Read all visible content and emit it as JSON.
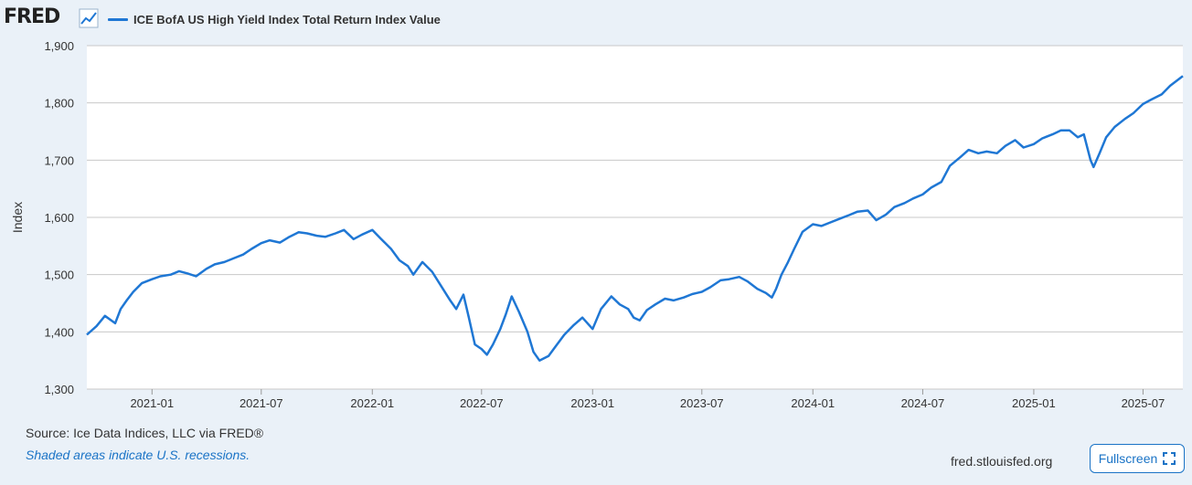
{
  "header": {
    "logo_text": "FRED",
    "logo_icon": "trend-chart-icon"
  },
  "chart_data": {
    "type": "line",
    "title": "",
    "legend": [
      {
        "name": "ICE BofA US High Yield Index Total Return Index Value",
        "color": "#1f77d4"
      }
    ],
    "ylabel": "Index",
    "xlabel": "",
    "ylim": [
      1300,
      1900
    ],
    "xlim": [
      "2020-09-15",
      "2025-09-05"
    ],
    "yticks": [
      1300,
      1400,
      1500,
      1600,
      1700,
      1800,
      1900
    ],
    "ytick_labels": [
      "1,300",
      "1,400",
      "1,500",
      "1,600",
      "1,700",
      "1,800",
      "1,900"
    ],
    "xticks": [
      "2021-01-01",
      "2021-07-01",
      "2022-01-01",
      "2022-07-01",
      "2023-01-01",
      "2023-07-01",
      "2024-01-01",
      "2024-07-01",
      "2025-01-01",
      "2025-07-01"
    ],
    "xtick_labels": [
      "2021-01",
      "2021-07",
      "2022-01",
      "2022-07",
      "2023-01",
      "2023-07",
      "2024-01",
      "2024-07",
      "2025-01",
      "2025-07"
    ],
    "grid": "horizontal",
    "series": [
      {
        "name": "ICE BofA US High Yield Index Total Return Index Value",
        "color": "#1f77d4",
        "points": [
          [
            "2020-09-15",
            1395
          ],
          [
            "2020-10-01",
            1410
          ],
          [
            "2020-10-15",
            1428
          ],
          [
            "2020-11-01",
            1415
          ],
          [
            "2020-11-10",
            1440
          ],
          [
            "2020-11-20",
            1455
          ],
          [
            "2020-12-01",
            1470
          ],
          [
            "2020-12-15",
            1485
          ],
          [
            "2021-01-01",
            1492
          ],
          [
            "2021-01-15",
            1497
          ],
          [
            "2021-02-01",
            1500
          ],
          [
            "2021-02-15",
            1506
          ],
          [
            "2021-03-01",
            1502
          ],
          [
            "2021-03-15",
            1497
          ],
          [
            "2021-04-01",
            1510
          ],
          [
            "2021-04-15",
            1518
          ],
          [
            "2021-05-01",
            1522
          ],
          [
            "2021-05-15",
            1528
          ],
          [
            "2021-06-01",
            1535
          ],
          [
            "2021-06-15",
            1545
          ],
          [
            "2021-07-01",
            1555
          ],
          [
            "2021-07-15",
            1560
          ],
          [
            "2021-08-01",
            1556
          ],
          [
            "2021-08-15",
            1565
          ],
          [
            "2021-09-01",
            1574
          ],
          [
            "2021-09-15",
            1572
          ],
          [
            "2021-10-01",
            1568
          ],
          [
            "2021-10-15",
            1566
          ],
          [
            "2021-11-01",
            1572
          ],
          [
            "2021-11-15",
            1578
          ],
          [
            "2021-12-01",
            1562
          ],
          [
            "2021-12-15",
            1570
          ],
          [
            "2022-01-01",
            1578
          ],
          [
            "2022-01-15",
            1563
          ],
          [
            "2022-02-01",
            1545
          ],
          [
            "2022-02-15",
            1525
          ],
          [
            "2022-03-01",
            1515
          ],
          [
            "2022-03-10",
            1500
          ],
          [
            "2022-03-25",
            1522
          ],
          [
            "2022-04-10",
            1505
          ],
          [
            "2022-04-25",
            1480
          ],
          [
            "2022-05-10",
            1455
          ],
          [
            "2022-05-20",
            1440
          ],
          [
            "2022-06-01",
            1465
          ],
          [
            "2022-06-10",
            1425
          ],
          [
            "2022-06-20",
            1378
          ],
          [
            "2022-07-01",
            1370
          ],
          [
            "2022-07-10",
            1360
          ],
          [
            "2022-07-20",
            1378
          ],
          [
            "2022-08-01",
            1405
          ],
          [
            "2022-08-10",
            1430
          ],
          [
            "2022-08-20",
            1462
          ],
          [
            "2022-09-01",
            1435
          ],
          [
            "2022-09-15",
            1400
          ],
          [
            "2022-09-25",
            1365
          ],
          [
            "2022-10-05",
            1350
          ],
          [
            "2022-10-20",
            1358
          ],
          [
            "2022-11-01",
            1375
          ],
          [
            "2022-11-15",
            1395
          ],
          [
            "2022-12-01",
            1412
          ],
          [
            "2022-12-15",
            1425
          ],
          [
            "2023-01-01",
            1405
          ],
          [
            "2023-01-15",
            1440
          ],
          [
            "2023-02-01",
            1462
          ],
          [
            "2023-02-15",
            1448
          ],
          [
            "2023-03-01",
            1440
          ],
          [
            "2023-03-10",
            1425
          ],
          [
            "2023-03-20",
            1420
          ],
          [
            "2023-04-01",
            1438
          ],
          [
            "2023-04-15",
            1448
          ],
          [
            "2023-05-01",
            1458
          ],
          [
            "2023-05-15",
            1455
          ],
          [
            "2023-06-01",
            1460
          ],
          [
            "2023-06-15",
            1466
          ],
          [
            "2023-07-01",
            1470
          ],
          [
            "2023-07-15",
            1478
          ],
          [
            "2023-08-01",
            1490
          ],
          [
            "2023-08-15",
            1492
          ],
          [
            "2023-09-01",
            1496
          ],
          [
            "2023-09-15",
            1488
          ],
          [
            "2023-10-01",
            1475
          ],
          [
            "2023-10-15",
            1468
          ],
          [
            "2023-10-25",
            1460
          ],
          [
            "2023-11-01",
            1475
          ],
          [
            "2023-11-10",
            1500
          ],
          [
            "2023-11-20",
            1520
          ],
          [
            "2023-12-01",
            1545
          ],
          [
            "2023-12-15",
            1575
          ],
          [
            "2024-01-01",
            1588
          ],
          [
            "2024-01-15",
            1585
          ],
          [
            "2024-02-01",
            1592
          ],
          [
            "2024-02-15",
            1598
          ],
          [
            "2024-03-01",
            1604
          ],
          [
            "2024-03-15",
            1610
          ],
          [
            "2024-04-01",
            1612
          ],
          [
            "2024-04-15",
            1595
          ],
          [
            "2024-05-01",
            1605
          ],
          [
            "2024-05-15",
            1618
          ],
          [
            "2024-06-01",
            1625
          ],
          [
            "2024-06-15",
            1633
          ],
          [
            "2024-07-01",
            1640
          ],
          [
            "2024-07-15",
            1652
          ],
          [
            "2024-08-01",
            1662
          ],
          [
            "2024-08-15",
            1690
          ],
          [
            "2024-09-01",
            1705
          ],
          [
            "2024-09-15",
            1718
          ],
          [
            "2024-10-01",
            1712
          ],
          [
            "2024-10-15",
            1715
          ],
          [
            "2024-11-01",
            1712
          ],
          [
            "2024-11-15",
            1725
          ],
          [
            "2024-12-01",
            1735
          ],
          [
            "2024-12-15",
            1722
          ],
          [
            "2025-01-01",
            1728
          ],
          [
            "2025-01-15",
            1738
          ],
          [
            "2025-02-01",
            1745
          ],
          [
            "2025-02-15",
            1752
          ],
          [
            "2025-03-01",
            1752
          ],
          [
            "2025-03-15",
            1740
          ],
          [
            "2025-03-25",
            1745
          ],
          [
            "2025-04-05",
            1700
          ],
          [
            "2025-04-10",
            1688
          ],
          [
            "2025-04-20",
            1712
          ],
          [
            "2025-05-01",
            1740
          ],
          [
            "2025-05-15",
            1758
          ],
          [
            "2025-06-01",
            1772
          ],
          [
            "2025-06-15",
            1782
          ],
          [
            "2025-07-01",
            1798
          ],
          [
            "2025-07-15",
            1806
          ],
          [
            "2025-08-01",
            1815
          ],
          [
            "2025-08-15",
            1830
          ],
          [
            "2025-09-05",
            1847
          ]
        ]
      }
    ]
  },
  "footer": {
    "source": "Source: Ice Data Indices, LLC via FRED®",
    "note": "Shaded areas indicate U.S. recessions.",
    "site": "fred.stlouisfed.org",
    "fullscreen_label": "Fullscreen",
    "fullscreen_icon": "expand-icon"
  }
}
